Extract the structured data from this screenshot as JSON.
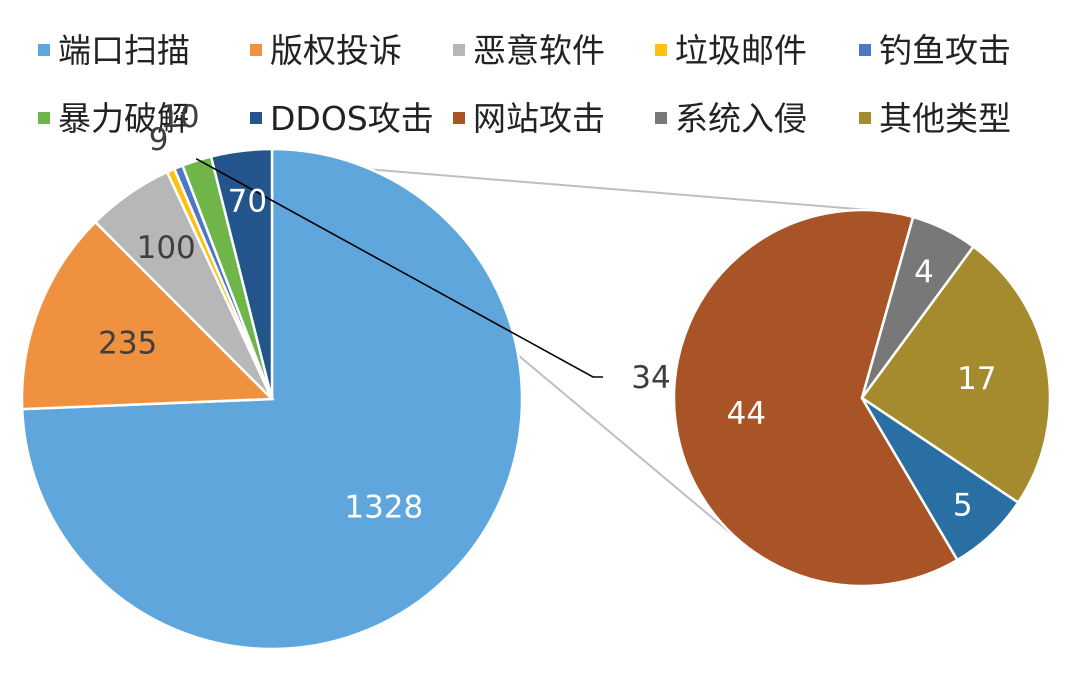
{
  "chart_data": {
    "type": "bar-of-pie",
    "legend_position": "top",
    "categories": [
      "端口扫描",
      "版权投诉",
      "恶意软件",
      "垃圾邮件",
      "钓鱼攻击",
      "暴力破解",
      "DDOS攻击",
      "网站攻击",
      "系统入侵",
      "其他类型"
    ],
    "colors": [
      "#5fa6dc",
      "#f0913f",
      "#b7b7b7",
      "#fdc20f",
      "#4c78c5",
      "#6fb54a",
      "#23558c",
      "#a95427",
      "#787878",
      "#a68a2e"
    ],
    "main_pie": {
      "categories": [
        "端口扫描",
        "版权投诉",
        "恶意软件",
        "垃圾邮件",
        "钓鱼攻击",
        "暴力破解",
        "DDOS攻击"
      ],
      "values": [
        1328,
        235,
        100,
        9,
        10,
        34,
        70
      ],
      "labels": [
        "1328",
        "235",
        "100",
        "9",
        "10",
        "34",
        "70"
      ]
    },
    "secondary_pie": {
      "categories": [
        "网站攻击",
        "系统入侵",
        "其他类型",
        "DDOS攻击"
      ],
      "values": [
        44,
        4,
        17,
        5
      ],
      "labels": [
        "44",
        "4",
        "17",
        "5"
      ]
    }
  }
}
